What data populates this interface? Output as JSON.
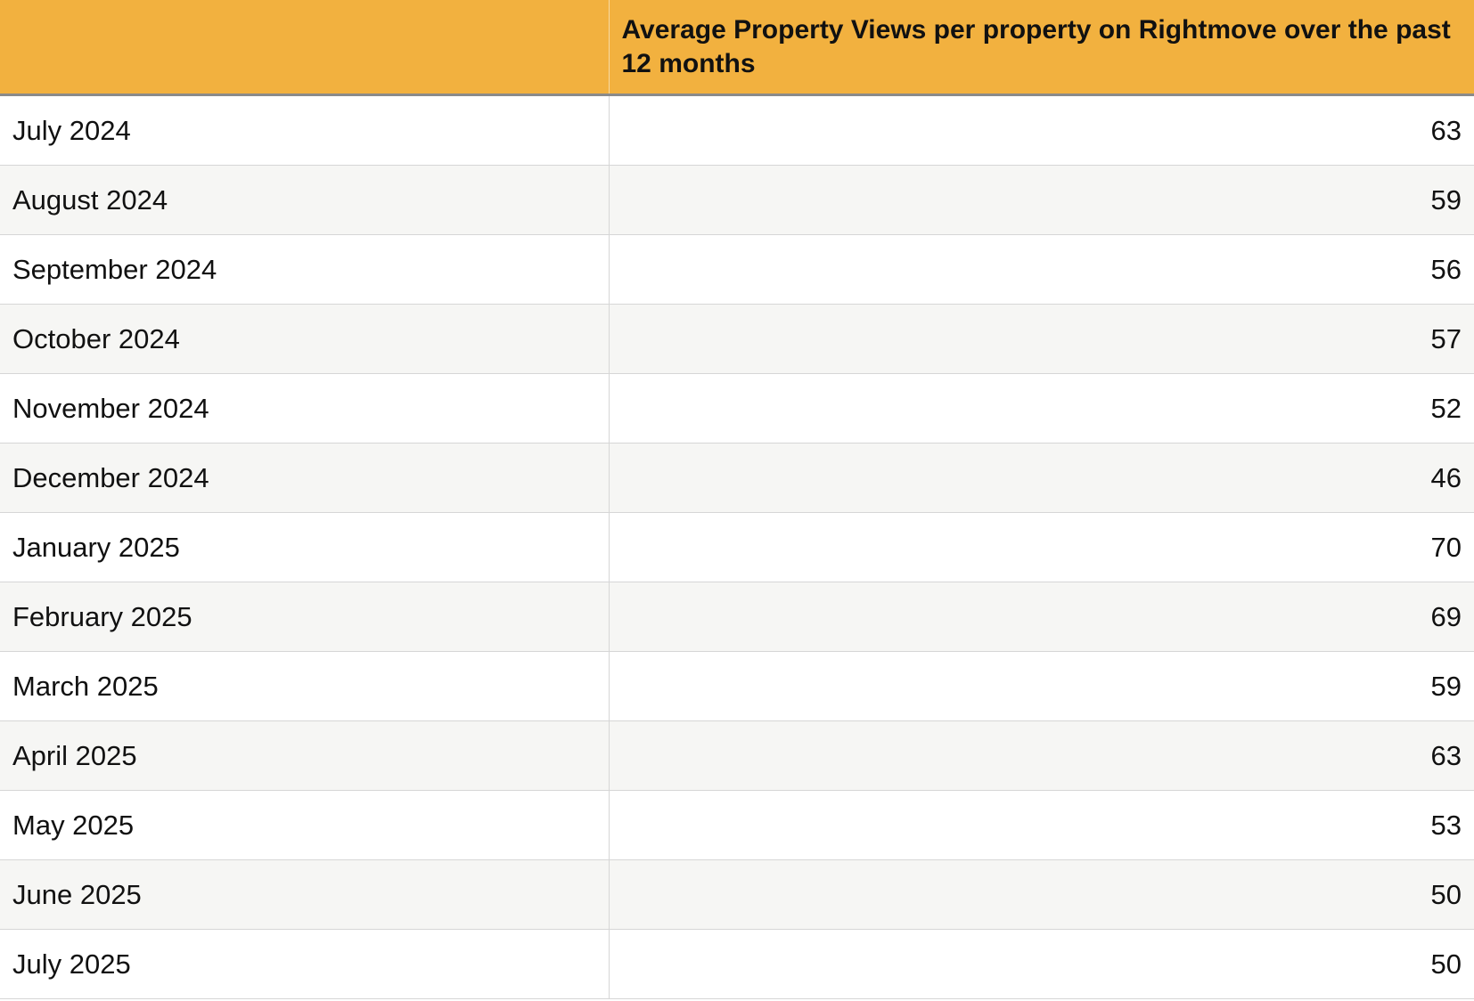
{
  "chart_data": {
    "type": "table",
    "columns": [
      "",
      "Average Property Views per property on Rightmove over the past 12 months"
    ],
    "rows": [
      {
        "month": "July 2024",
        "value": 63
      },
      {
        "month": "August 2024",
        "value": 59
      },
      {
        "month": "September 2024",
        "value": 56
      },
      {
        "month": "October 2024",
        "value": 57
      },
      {
        "month": "November 2024",
        "value": 52
      },
      {
        "month": "December 2024",
        "value": 46
      },
      {
        "month": "January 2025",
        "value": 70
      },
      {
        "month": "February 2025",
        "value": 69
      },
      {
        "month": "March 2025",
        "value": 59
      },
      {
        "month": "April 2025",
        "value": 63
      },
      {
        "month": "May 2025",
        "value": 53
      },
      {
        "month": "June 2025",
        "value": 50
      },
      {
        "month": "July 2025",
        "value": 50
      }
    ]
  },
  "colors": {
    "header_background": "#f2b13f",
    "row_alt_background": "#f6f6f4"
  }
}
